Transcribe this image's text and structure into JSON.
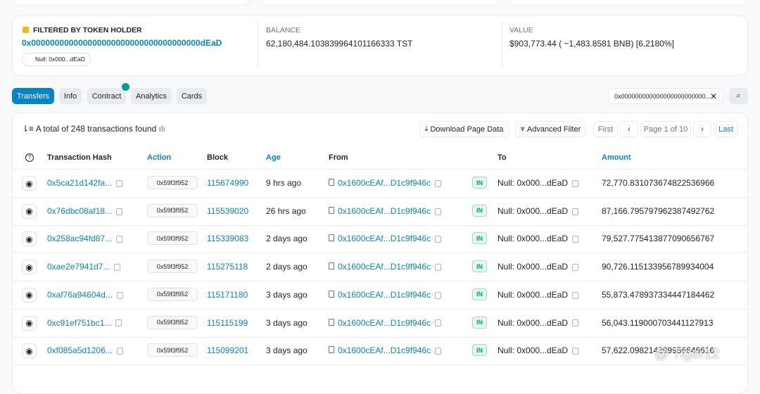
{
  "holder": {
    "label": "FILTERED BY TOKEN HOLDER",
    "address": "0x000000000000000000000000000000000000dEaD",
    "tag": "Null: 0x000...dEaD"
  },
  "balance": {
    "label": "BALANCE",
    "value": "62,180,484.103839964101166333 TST"
  },
  "value": {
    "label": "VALUE",
    "value": "$903,773.44 ( ~1,483.8581 BNB) [6.2180%]"
  },
  "tabs": [
    "Transfers",
    "Info",
    "Contract",
    "Analytics",
    "Cards"
  ],
  "search": "0x000000000000000000000000...",
  "summary": "A total of 248 transactions found",
  "buttons": [
    "Download Page Data",
    "Advanced Filter"
  ],
  "pager": {
    "first": "First",
    "page": "Page 1 of 10",
    "last": "Last"
  },
  "table": {
    "headers": [
      "Transaction Hash",
      "Action",
      "Block",
      "Age",
      "From",
      "To",
      "Amount"
    ],
    "rows": [
      [
        "0x5ca21d142fa...",
        "0x59f3f952",
        "115674990",
        "9 hrs ago",
        "0x1600cEAf...D1c9f946c",
        "IN",
        "Null: 0x000...dEaD",
        "72,770.831073674822536966"
      ],
      [
        "0x76dbc08af18...",
        "0x59f3f952",
        "115539020",
        "26 hrs ago",
        "0x1600cEAf...D1c9f946c",
        "IN",
        "Null: 0x000...dEaD",
        "87,166.795797962387492762"
      ],
      [
        "0x258ac94fd87...",
        "0x59f3f952",
        "115339083",
        "2 days ago",
        "0x1600cEAf...D1c9f946c",
        "IN",
        "Null: 0x000...dEaD",
        "79,527.775413877090656767"
      ],
      [
        "0xae2e7941d7...",
        "0x59f3f952",
        "115275118",
        "2 days ago",
        "0x1600cEAf...D1c9f946c",
        "IN",
        "Null: 0x000...dEaD",
        "90,726.115133956789934004"
      ],
      [
        "0xaf76a94604d...",
        "0x59f3f952",
        "115171180",
        "3 days ago",
        "0x1600cEAf...D1c9f946c",
        "IN",
        "Null: 0x000...dEaD",
        "55,873.478937334447184462"
      ],
      [
        "0xc91ef751bc1...",
        "0x59f3f952",
        "115115199",
        "3 days ago",
        "0x1600cEAf...D1c9f946c",
        "IN",
        "Null: 0x000...dEaD",
        "56,043.119000703441127913"
      ],
      [
        "0xf085a5d1206...",
        "0x59f3f952",
        "115099201",
        "3 days ago",
        "0x1600cEAf...D1c9f946c",
        "IN",
        "Null: 0x000...dEaD",
        "57,622.098214299956646616"
      ]
    ]
  },
  "watermark": "Tiger12"
}
